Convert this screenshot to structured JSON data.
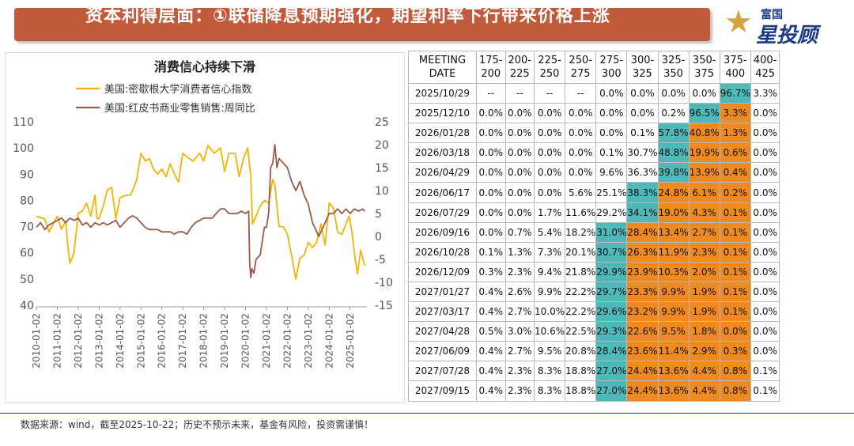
{
  "header": {
    "title": "资本利得层面：①联储降息预期强化，期望利率下行带来价格上涨",
    "logo_top": "富国",
    "logo_main": "星投顾"
  },
  "footer": {
    "text": "数据来源：wind，截至2025-10-22；历史不预示未来，基金有风险，投资需谨慎！"
  },
  "colors": {
    "banner": "#c25a3c",
    "series1": "#f5b400",
    "series2": "#9b5a4a",
    "teal": "#4fb9ba",
    "orange": "#ee8a20"
  },
  "chart_data": {
    "type": "line",
    "title": "消费信心持续下滑",
    "legend_placement": "top-left",
    "grid": false,
    "x_ticks": [
      "2010-01-02",
      "2011-01-02",
      "2012-01-02",
      "2013-01-02",
      "2014-01-02",
      "2015-01-02",
      "2016-01-02",
      "2017-01-02",
      "2018-01-02",
      "2019-01-02",
      "2020-01-02",
      "2021-01-02",
      "2022-01-02",
      "2023-01-02",
      "2024-01-02",
      "2025-01-02"
    ],
    "xlim": [
      2010.0,
      2025.8
    ],
    "y_left": {
      "ticks": [
        "110",
        "100",
        "90",
        "80",
        "70",
        "60",
        "50",
        "40"
      ],
      "ylim": [
        40,
        110
      ]
    },
    "y_right": {
      "ticks": [
        "25",
        "20",
        "15",
        "10",
        "5",
        "0",
        "-5",
        "-10",
        "-15"
      ],
      "ylim": [
        -15,
        25
      ]
    },
    "series": [
      {
        "name": "美国:密歇根大学消费者信心指数",
        "axis": "left",
        "color": "#f5b400",
        "points": [
          [
            2010.0,
            74
          ],
          [
            2010.2,
            73.5
          ],
          [
            2010.4,
            73
          ],
          [
            2010.6,
            68
          ],
          [
            2010.8,
            71
          ],
          [
            2011.0,
            74
          ],
          [
            2011.2,
            69
          ],
          [
            2011.4,
            72
          ],
          [
            2011.5,
            63
          ],
          [
            2011.6,
            56
          ],
          [
            2011.8,
            60
          ],
          [
            2012.0,
            75
          ],
          [
            2012.2,
            76
          ],
          [
            2012.4,
            79
          ],
          [
            2012.6,
            74
          ],
          [
            2012.8,
            82
          ],
          [
            2012.9,
            73
          ],
          [
            2013.0,
            73
          ],
          [
            2013.2,
            78
          ],
          [
            2013.4,
            84
          ],
          [
            2013.6,
            85
          ],
          [
            2013.8,
            73
          ],
          [
            2014.0,
            81
          ],
          [
            2014.3,
            82
          ],
          [
            2014.5,
            82
          ],
          [
            2014.8,
            88
          ],
          [
            2015.0,
            98
          ],
          [
            2015.2,
            95
          ],
          [
            2015.4,
            96
          ],
          [
            2015.6,
            92
          ],
          [
            2015.8,
            90
          ],
          [
            2016.0,
            92
          ],
          [
            2016.2,
            89
          ],
          [
            2016.4,
            94
          ],
          [
            2016.6,
            90
          ],
          [
            2016.8,
            87
          ],
          [
            2016.9,
            93
          ],
          [
            2017.0,
            98
          ],
          [
            2017.3,
            96
          ],
          [
            2017.5,
            95
          ],
          [
            2017.8,
            98
          ],
          [
            2018.0,
            95
          ],
          [
            2018.2,
            101
          ],
          [
            2018.5,
            98
          ],
          [
            2018.8,
            100
          ],
          [
            2019.0,
            91
          ],
          [
            2019.2,
            98
          ],
          [
            2019.5,
            98
          ],
          [
            2019.7,
            89
          ],
          [
            2019.9,
            96
          ],
          [
            2020.1,
            100
          ],
          [
            2020.25,
            89
          ],
          [
            2020.33,
            71
          ],
          [
            2020.5,
            74
          ],
          [
            2020.7,
            78
          ],
          [
            2020.9,
            80
          ],
          [
            2021.1,
            79
          ],
          [
            2021.3,
            88
          ],
          [
            2021.4,
            86
          ],
          [
            2021.6,
            70
          ],
          [
            2021.8,
            70
          ],
          [
            2022.0,
            67
          ],
          [
            2022.2,
            59
          ],
          [
            2022.4,
            50
          ],
          [
            2022.6,
            58
          ],
          [
            2022.8,
            59
          ],
          [
            2023.0,
            64
          ],
          [
            2023.2,
            62
          ],
          [
            2023.4,
            64
          ],
          [
            2023.6,
            71
          ],
          [
            2023.8,
            63
          ],
          [
            2024.0,
            79
          ],
          [
            2024.2,
            77
          ],
          [
            2024.4,
            68
          ],
          [
            2024.6,
            67
          ],
          [
            2024.8,
            71
          ],
          [
            2024.95,
            74
          ],
          [
            2025.1,
            67
          ],
          [
            2025.25,
            57
          ],
          [
            2025.35,
            52
          ],
          [
            2025.5,
            61
          ],
          [
            2025.6,
            58
          ],
          [
            2025.7,
            55
          ]
        ]
      },
      {
        "name": "美国:红皮书商业零售销售:周同比",
        "axis": "right",
        "color": "#9b5a4a",
        "points": [
          [
            2010.0,
            2
          ],
          [
            2010.2,
            3
          ],
          [
            2010.4,
            1.5
          ],
          [
            2010.6,
            2.5
          ],
          [
            2010.8,
            3
          ],
          [
            2011.0,
            3.5
          ],
          [
            2011.2,
            4
          ],
          [
            2011.4,
            3
          ],
          [
            2011.6,
            4
          ],
          [
            2011.8,
            3.5
          ],
          [
            2012.0,
            4
          ],
          [
            2012.2,
            2.5
          ],
          [
            2012.4,
            3
          ],
          [
            2012.6,
            2
          ],
          [
            2012.8,
            3
          ],
          [
            2013.0,
            2.5
          ],
          [
            2013.2,
            3
          ],
          [
            2013.4,
            2.5
          ],
          [
            2013.6,
            3
          ],
          [
            2013.8,
            3.5
          ],
          [
            2014.0,
            2
          ],
          [
            2014.2,
            3
          ],
          [
            2014.4,
            4
          ],
          [
            2014.6,
            4.5
          ],
          [
            2014.8,
            4
          ],
          [
            2015.0,
            3
          ],
          [
            2015.2,
            2
          ],
          [
            2015.4,
            1.5
          ],
          [
            2015.6,
            1.5
          ],
          [
            2015.8,
            1.5
          ],
          [
            2016.0,
            1
          ],
          [
            2016.2,
            1
          ],
          [
            2016.4,
            1
          ],
          [
            2016.6,
            0.5
          ],
          [
            2016.8,
            1
          ],
          [
            2017.0,
            1
          ],
          [
            2017.2,
            0.5
          ],
          [
            2017.4,
            2
          ],
          [
            2017.6,
            3
          ],
          [
            2017.8,
            3.5
          ],
          [
            2018.0,
            4
          ],
          [
            2018.2,
            4
          ],
          [
            2018.4,
            4
          ],
          [
            2018.6,
            5
          ],
          [
            2018.8,
            6
          ],
          [
            2019.0,
            6
          ],
          [
            2019.2,
            5
          ],
          [
            2019.4,
            5
          ],
          [
            2019.6,
            5
          ],
          [
            2019.8,
            5.5
          ],
          [
            2020.0,
            5
          ],
          [
            2020.15,
            5.5
          ],
          [
            2020.2,
            -6
          ],
          [
            2020.25,
            -9
          ],
          [
            2020.3,
            -7
          ],
          [
            2020.4,
            -8
          ],
          [
            2020.5,
            -5
          ],
          [
            2020.7,
            -4
          ],
          [
            2020.9,
            2
          ],
          [
            2021.0,
            2
          ],
          [
            2021.1,
            5
          ],
          [
            2021.2,
            15
          ],
          [
            2021.3,
            16
          ],
          [
            2021.4,
            20
          ],
          [
            2021.5,
            15
          ],
          [
            2021.6,
            17
          ],
          [
            2021.8,
            16
          ],
          [
            2022.0,
            15
          ],
          [
            2022.2,
            12
          ],
          [
            2022.4,
            10
          ],
          [
            2022.6,
            12
          ],
          [
            2022.8,
            9
          ],
          [
            2023.0,
            7
          ],
          [
            2023.2,
            3
          ],
          [
            2023.3,
            2
          ],
          [
            2023.5,
            0
          ],
          [
            2023.6,
            1
          ],
          [
            2023.8,
            3
          ],
          [
            2024.0,
            5
          ],
          [
            2024.2,
            5
          ],
          [
            2024.4,
            6
          ],
          [
            2024.6,
            5
          ],
          [
            2024.8,
            6
          ],
          [
            2025.0,
            5
          ],
          [
            2025.2,
            6
          ],
          [
            2025.4,
            5.5
          ],
          [
            2025.6,
            6
          ],
          [
            2025.7,
            5.5
          ]
        ]
      }
    ]
  },
  "table": {
    "header_date": [
      "MEETING",
      "DATE"
    ],
    "columns": [
      [
        "175-",
        "200"
      ],
      [
        "200-",
        "225"
      ],
      [
        "225-",
        "250"
      ],
      [
        "250-",
        "275"
      ],
      [
        "275-",
        "300"
      ],
      [
        "300-",
        "325"
      ],
      [
        "325-",
        "350"
      ],
      [
        "350-",
        "375"
      ],
      [
        "375-",
        "400"
      ],
      [
        "400-",
        "425"
      ]
    ],
    "rows": [
      {
        "date": "2025/10/29",
        "values": [
          "--",
          "--",
          "--",
          "--",
          "0.0%",
          "0.0%",
          "0.0%",
          "0.0%",
          "96.7%",
          "3.3%"
        ],
        "fill": [
          "",
          "",
          "",
          "",
          "",
          "",
          "",
          "",
          "t",
          ""
        ]
      },
      {
        "date": "2025/12/10",
        "values": [
          "0.0%",
          "0.0%",
          "0.0%",
          "0.0%",
          "0.0%",
          "0.0%",
          "0.2%",
          "96.5%",
          "3.3%",
          "0.0%"
        ],
        "fill": [
          "",
          "",
          "",
          "",
          "",
          "",
          "",
          "t",
          "o",
          ""
        ]
      },
      {
        "date": "2026/01/28",
        "values": [
          "0.0%",
          "0.0%",
          "0.0%",
          "0.0%",
          "0.0%",
          "0.1%",
          "57.8%",
          "40.8%",
          "1.3%",
          "0.0%"
        ],
        "fill": [
          "",
          "",
          "",
          "",
          "",
          "",
          "t",
          "o",
          "o",
          ""
        ]
      },
      {
        "date": "2026/03/18",
        "values": [
          "0.0%",
          "0.0%",
          "0.0%",
          "0.0%",
          "0.1%",
          "30.7%",
          "48.8%",
          "19.9%",
          "0.6%",
          "0.0%"
        ],
        "fill": [
          "",
          "",
          "",
          "",
          "",
          "",
          "t",
          "o",
          "o",
          ""
        ]
      },
      {
        "date": "2026/04/29",
        "values": [
          "0.0%",
          "0.0%",
          "0.0%",
          "0.0%",
          "9.6%",
          "36.3%",
          "39.8%",
          "13.9%",
          "0.4%",
          "0.0%"
        ],
        "fill": [
          "",
          "",
          "",
          "",
          "",
          "",
          "t",
          "o",
          "o",
          ""
        ]
      },
      {
        "date": "2026/06/17",
        "values": [
          "0.0%",
          "0.0%",
          "0.0%",
          "5.6%",
          "25.1%",
          "38.3%",
          "24.8%",
          "6.1%",
          "0.2%",
          "0.0%"
        ],
        "fill": [
          "",
          "",
          "",
          "",
          "",
          "t",
          "o",
          "o",
          "o",
          ""
        ]
      },
      {
        "date": "2026/07/29",
        "values": [
          "0.0%",
          "0.0%",
          "1.7%",
          "11.6%",
          "29.2%",
          "34.1%",
          "19.0%",
          "4.3%",
          "0.1%",
          "0.0%"
        ],
        "fill": [
          "",
          "",
          "",
          "",
          "",
          "t",
          "o",
          "o",
          "o",
          ""
        ]
      },
      {
        "date": "2026/09/16",
        "values": [
          "0.0%",
          "0.7%",
          "5.4%",
          "18.2%",
          "31.0%",
          "28.4%",
          "13.4%",
          "2.7%",
          "0.1%",
          "0.0%"
        ],
        "fill": [
          "",
          "",
          "",
          "",
          "t",
          "o",
          "o",
          "o",
          "o",
          ""
        ]
      },
      {
        "date": "2026/10/28",
        "values": [
          "0.1%",
          "1.3%",
          "7.3%",
          "20.1%",
          "30.7%",
          "26.3%",
          "11.9%",
          "2.3%",
          "0.1%",
          "0.0%"
        ],
        "fill": [
          "",
          "",
          "",
          "",
          "t",
          "o",
          "o",
          "o",
          "o",
          ""
        ]
      },
      {
        "date": "2026/12/09",
        "values": [
          "0.3%",
          "2.3%",
          "9.4%",
          "21.8%",
          "29.9%",
          "23.9%",
          "10.3%",
          "2.0%",
          "0.1%",
          "0.0%"
        ],
        "fill": [
          "",
          "",
          "",
          "",
          "t",
          "o",
          "o",
          "o",
          "o",
          ""
        ]
      },
      {
        "date": "2027/01/27",
        "values": [
          "0.4%",
          "2.6%",
          "9.9%",
          "22.2%",
          "29.7%",
          "23.3%",
          "9.9%",
          "1.9%",
          "0.1%",
          "0.0%"
        ],
        "fill": [
          "",
          "",
          "",
          "",
          "t",
          "o",
          "o",
          "o",
          "o",
          ""
        ]
      },
      {
        "date": "2027/03/17",
        "values": [
          "0.4%",
          "2.7%",
          "10.0%",
          "22.2%",
          "29.6%",
          "23.2%",
          "9.9%",
          "1.9%",
          "0.1%",
          "0.0%"
        ],
        "fill": [
          "",
          "",
          "",
          "",
          "t",
          "o",
          "o",
          "o",
          "o",
          ""
        ]
      },
      {
        "date": "2027/04/28",
        "values": [
          "0.5%",
          "3.0%",
          "10.6%",
          "22.5%",
          "29.3%",
          "22.6%",
          "9.5%",
          "1.8%",
          "0.0%",
          "0.0%"
        ],
        "fill": [
          "",
          "",
          "",
          "",
          "t",
          "o",
          "o",
          "o",
          "o",
          ""
        ]
      },
      {
        "date": "2027/06/09",
        "values": [
          "0.4%",
          "2.7%",
          "9.5%",
          "20.8%",
          "28.4%",
          "23.6%",
          "11.4%",
          "2.9%",
          "0.3%",
          "0.0%"
        ],
        "fill": [
          "",
          "",
          "",
          "",
          "t",
          "o",
          "o",
          "o",
          "o",
          ""
        ]
      },
      {
        "date": "2027/07/28",
        "values": [
          "0.4%",
          "2.3%",
          "8.3%",
          "18.8%",
          "27.0%",
          "24.4%",
          "13.6%",
          "4.4%",
          "0.8%",
          "0.1%"
        ],
        "fill": [
          "",
          "",
          "",
          "",
          "t",
          "o",
          "o",
          "o",
          "o",
          ""
        ]
      },
      {
        "date": "2027/09/15",
        "values": [
          "0.4%",
          "2.3%",
          "8.3%",
          "18.8%",
          "27.0%",
          "24.4%",
          "13.6%",
          "4.4%",
          "0.8%",
          "0.1%"
        ],
        "fill": [
          "",
          "",
          "",
          "",
          "t",
          "o",
          "o",
          "o",
          "o",
          ""
        ]
      }
    ]
  }
}
